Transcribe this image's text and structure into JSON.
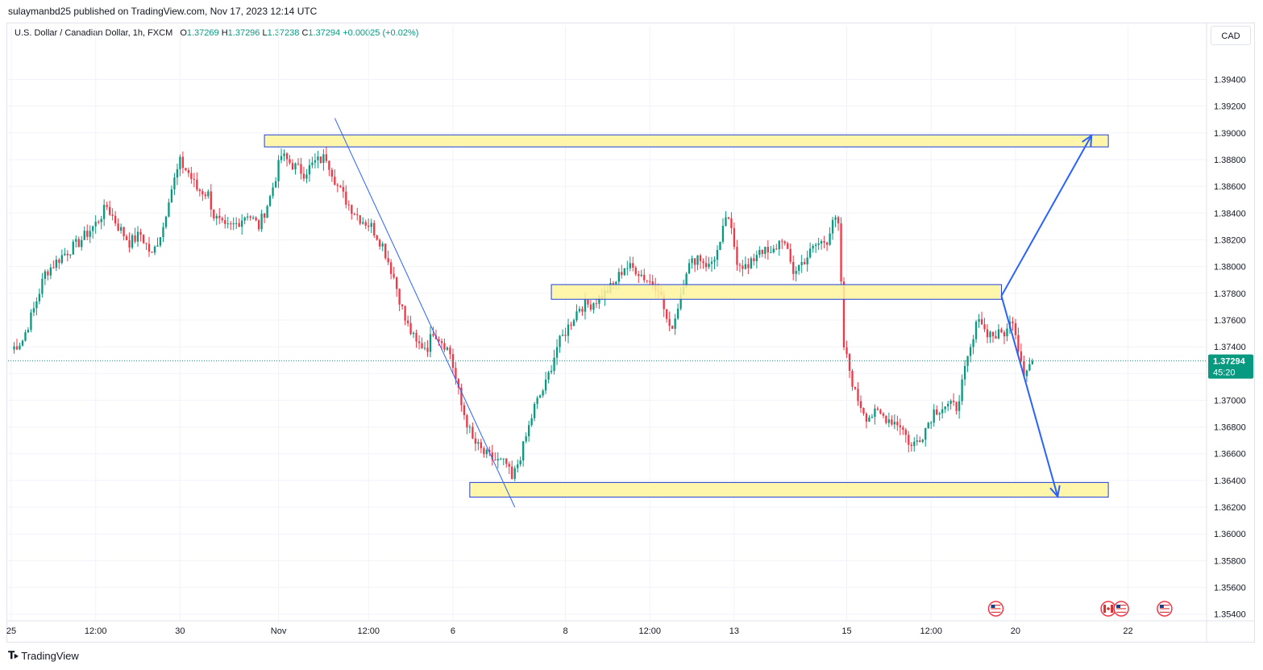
{
  "header": {
    "publisher": "sulaymanbd25 published on TradingView.com, Nov 17, 2023 12:14 UTC",
    "symbol": "U.S. Dollar / Canadian Dollar, 1h, FXCM",
    "open_label": "O",
    "open": "1.37269",
    "high_label": "H",
    "high": "1.37296",
    "low_label": "L",
    "low": "1.37238",
    "close_label": "C",
    "close": "1.37294",
    "change": "+0.00025 (+0.02%)"
  },
  "currency_button": "CAD",
  "footer": {
    "brand": "TradingView",
    "logo_icon": "tradingview-logo-icon"
  },
  "colors": {
    "up": "#089981",
    "down": "#f23645",
    "zone_fill": "#fff59d",
    "zone_border": "#1e3fd8",
    "arrow": "#2962ff",
    "trendline": "#2962ff",
    "price_tag": "#089981",
    "grid": "#f0f3fa"
  },
  "chart_data": {
    "type": "candlestick",
    "title": "",
    "ylim": [
      1.3535,
      1.3965
    ],
    "y_ticks": [
      "1.39400",
      "1.39200",
      "1.39000",
      "1.38800",
      "1.38600",
      "1.38400",
      "1.38200",
      "1.38000",
      "1.37800",
      "1.37600",
      "1.37400",
      "1.37200",
      "1.37000",
      "1.36800",
      "1.36600",
      "1.36400",
      "1.36200",
      "1.36000",
      "1.35800",
      "1.35600",
      "1.35400"
    ],
    "y_tick_values": [
      1.394,
      1.392,
      1.39,
      1.388,
      1.386,
      1.384,
      1.382,
      1.38,
      1.378,
      1.376,
      1.374,
      1.372,
      1.37,
      1.368,
      1.366,
      1.364,
      1.362,
      1.36,
      1.358,
      1.356,
      1.354
    ],
    "x_ticks": [
      "25",
      "12:00",
      "30",
      "Nov",
      "12:00",
      "6",
      "8",
      "12:00",
      "13",
      "15",
      "12:00",
      "20",
      "22"
    ],
    "x_tick_index": [
      0,
      30,
      60,
      95,
      127,
      157,
      197,
      227,
      257,
      297,
      327,
      357,
      397
    ],
    "last_price": {
      "value": 1.37294,
      "label": "1.37294",
      "countdown": "45:20"
    },
    "events": [
      {
        "index": 350,
        "icons": [
          "us-flag-icon"
        ]
      },
      {
        "index": 390,
        "icons": [
          "ca-flag-icon",
          "us-flag-icon"
        ]
      },
      {
        "index": 410,
        "icons": [
          "us-flag-icon"
        ]
      }
    ],
    "zones": [
      {
        "name": "resistance-zone-top",
        "from_index": 90,
        "to_index": 390,
        "top": 1.38985,
        "bottom": 1.38895
      },
      {
        "name": "pivot-zone-middle",
        "from_index": 192,
        "to_index": 352,
        "top": 1.37865,
        "bottom": 1.37755
      },
      {
        "name": "support-zone-bottom",
        "from_index": 163,
        "to_index": 390,
        "top": 1.36385,
        "bottom": 1.36275
      }
    ],
    "trendline": {
      "from": [
        115,
        1.3911
      ],
      "to": [
        179,
        1.362
      ]
    },
    "arrows": [
      {
        "from": [
          352,
          1.3778
        ],
        "to": [
          384,
          1.3898
        ]
      },
      {
        "from": [
          352,
          1.3778
        ],
        "to": [
          372,
          1.3628
        ]
      }
    ],
    "path": [
      [
        0,
        1.3738
      ],
      [
        4,
        1.3745
      ],
      [
        8,
        1.3768
      ],
      [
        12,
        1.3795
      ],
      [
        18,
        1.3808
      ],
      [
        24,
        1.3818
      ],
      [
        30,
        1.3832
      ],
      [
        34,
        1.3845
      ],
      [
        38,
        1.383
      ],
      [
        42,
        1.3818
      ],
      [
        46,
        1.3824
      ],
      [
        50,
        1.3808
      ],
      [
        54,
        1.383
      ],
      [
        56,
        1.3852
      ],
      [
        60,
        1.3878
      ],
      [
        63,
        1.387
      ],
      [
        66,
        1.3858
      ],
      [
        70,
        1.3854
      ],
      [
        72,
        1.3838
      ],
      [
        76,
        1.3828
      ],
      [
        80,
        1.3832
      ],
      [
        84,
        1.384
      ],
      [
        88,
        1.383
      ],
      [
        92,
        1.3852
      ],
      [
        96,
        1.3883
      ],
      [
        100,
        1.3876
      ],
      [
        104,
        1.387
      ],
      [
        108,
        1.3878
      ],
      [
        112,
        1.3882
      ],
      [
        116,
        1.386
      ],
      [
        120,
        1.3846
      ],
      [
        124,
        1.3836
      ],
      [
        128,
        1.383
      ],
      [
        132,
        1.3816
      ],
      [
        136,
        1.3792
      ],
      [
        140,
        1.376
      ],
      [
        144,
        1.3742
      ],
      [
        148,
        1.374
      ],
      [
        150,
        1.3752
      ],
      [
        154,
        1.3742
      ],
      [
        156,
        1.3735
      ],
      [
        160,
        1.3696
      ],
      [
        164,
        1.367
      ],
      [
        168,
        1.366
      ],
      [
        172,
        1.3655
      ],
      [
        176,
        1.3652
      ],
      [
        178,
        1.364
      ],
      [
        182,
        1.3665
      ],
      [
        186,
        1.3695
      ],
      [
        190,
        1.3712
      ],
      [
        194,
        1.374
      ],
      [
        198,
        1.3755
      ],
      [
        202,
        1.377
      ],
      [
        206,
        1.3772
      ],
      [
        210,
        1.3778
      ],
      [
        214,
        1.3786
      ],
      [
        218,
        1.38
      ],
      [
        222,
        1.3798
      ],
      [
        226,
        1.379
      ],
      [
        230,
        1.3785
      ],
      [
        234,
        1.3752
      ],
      [
        236,
        1.3762
      ],
      [
        240,
        1.3798
      ],
      [
        244,
        1.3808
      ],
      [
        248,
        1.38
      ],
      [
        252,
        1.3815
      ],
      [
        254,
        1.3838
      ],
      [
        256,
        1.3826
      ],
      [
        258,
        1.3805
      ],
      [
        262,
        1.3798
      ],
      [
        266,
        1.3814
      ],
      [
        270,
        1.3808
      ],
      [
        274,
        1.3822
      ],
      [
        278,
        1.3796
      ],
      [
        282,
        1.3805
      ],
      [
        286,
        1.3816
      ],
      [
        290,
        1.382
      ],
      [
        292,
        1.3836
      ],
      [
        294,
        1.383
      ],
      [
        296,
        1.374
      ],
      [
        300,
        1.3705
      ],
      [
        304,
        1.3688
      ],
      [
        308,
        1.369
      ],
      [
        312,
        1.3686
      ],
      [
        316,
        1.3682
      ],
      [
        320,
        1.3665
      ],
      [
        324,
        1.3675
      ],
      [
        328,
        1.3692
      ],
      [
        332,
        1.3696
      ],
      [
        336,
        1.3695
      ],
      [
        340,
        1.373
      ],
      [
        342,
        1.3745
      ],
      [
        344,
        1.3765
      ],
      [
        346,
        1.3752
      ],
      [
        350,
        1.3748
      ],
      [
        354,
        1.3752
      ],
      [
        356,
        1.3762
      ],
      [
        358,
        1.374
      ],
      [
        360,
        1.3722
      ],
      [
        362,
        1.3727
      ],
      [
        363,
        1.37294
      ]
    ]
  }
}
